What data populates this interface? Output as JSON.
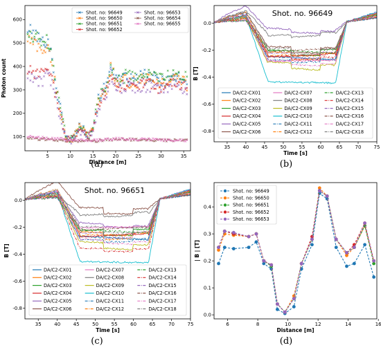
{
  "panel_labels": [
    "(a)",
    "(b)",
    "(c)",
    "(d)"
  ],
  "colors": {
    "C0": "#1f77b4",
    "C1": "#ff7f0e",
    "C2": "#2ca02c",
    "C3": "#d62728",
    "C4": "#9467bd",
    "C5": "#8c564b",
    "C6": "#e377c2",
    "C7": "#7f7f7f",
    "C8": "#bcbd22",
    "C9": "#17becf"
  },
  "chart_data": [
    {
      "type": "scatter",
      "panel": "(a)",
      "title": "",
      "xlabel": "Distance [m]",
      "ylabel": "Photon count",
      "xlim": [
        0,
        36.5
      ],
      "ylim": [
        40,
        660
      ],
      "xticks": [
        5,
        10,
        15,
        20,
        25,
        30,
        35
      ],
      "yticks": [
        100,
        200,
        300,
        400,
        500,
        600
      ],
      "legend": "top-right, 2 columns",
      "series": [
        {
          "name": "Shot. no: 96649",
          "color": "#1f77b4",
          "marker": "x",
          "style": "beam",
          "x": [
            0.5,
            2,
            4,
            5,
            6,
            7,
            8,
            9,
            10,
            11,
            12,
            13,
            14,
            15,
            16,
            17,
            18,
            19,
            20,
            21,
            22,
            24,
            26,
            28,
            30,
            32,
            34,
            36
          ],
          "y": [
            560,
            540,
            500,
            520,
            430,
            300,
            200,
            110,
            85,
            110,
            150,
            130,
            100,
            140,
            240,
            300,
            310,
            420,
            350,
            330,
            350,
            340,
            360,
            350,
            340,
            350,
            360,
            330
          ]
        },
        {
          "name": "Shot. no: 96650",
          "color": "#ff7f0e",
          "marker": "x",
          "style": "beam",
          "x": [
            0.5,
            2,
            4,
            5,
            6,
            7,
            8,
            9,
            10,
            11,
            12,
            13,
            14,
            15,
            16,
            17,
            18,
            19,
            20,
            21,
            22,
            24,
            26,
            28,
            30,
            32,
            34,
            36
          ],
          "y": [
            520,
            500,
            470,
            480,
            400,
            290,
            190,
            105,
            80,
            105,
            140,
            125,
            100,
            135,
            230,
            290,
            300,
            400,
            340,
            320,
            340,
            330,
            350,
            340,
            330,
            340,
            350,
            320
          ]
        },
        {
          "name": "Shot. no: 96651",
          "color": "#2ca02c",
          "marker": "x",
          "style": "beam",
          "x": [
            0.5,
            2,
            4,
            5,
            6,
            7,
            8,
            9,
            10,
            11,
            12,
            13,
            14,
            15,
            16,
            17,
            18,
            19,
            20,
            21,
            22,
            24,
            26,
            28,
            30,
            32,
            34,
            36
          ],
          "y": [
            550,
            530,
            500,
            510,
            420,
            300,
            200,
            110,
            85,
            110,
            150,
            130,
            105,
            140,
            240,
            300,
            310,
            410,
            350,
            330,
            360,
            350,
            370,
            360,
            350,
            360,
            370,
            340
          ]
        },
        {
          "name": "Shot. no: 96652",
          "color": "#d62728",
          "marker": "x",
          "style": "beam",
          "x": [
            0.5,
            2,
            4,
            5,
            6,
            7,
            8,
            9,
            10,
            11,
            12,
            13,
            14,
            15,
            16,
            17,
            18,
            19,
            20,
            21,
            22,
            24,
            26,
            28,
            30,
            32,
            34,
            36
          ],
          "y": [
            380,
            370,
            360,
            400,
            350,
            260,
            180,
            100,
            80,
            100,
            130,
            120,
            100,
            130,
            220,
            280,
            300,
            380,
            330,
            310,
            330,
            320,
            330,
            320,
            310,
            320,
            330,
            310
          ]
        },
        {
          "name": "Shot. no: 96653",
          "color": "#9467bd",
          "marker": "x",
          "style": "beam",
          "x": [
            0.5,
            2,
            4,
            5,
            6,
            7,
            8,
            9,
            10,
            11,
            12,
            13,
            14,
            15,
            16,
            17,
            18,
            19,
            20,
            21,
            22,
            24,
            26,
            28,
            30,
            32,
            34,
            36
          ],
          "y": [
            360,
            340,
            330,
            370,
            330,
            250,
            170,
            95,
            75,
            95,
            125,
            115,
            95,
            125,
            210,
            270,
            290,
            370,
            320,
            300,
            320,
            310,
            320,
            310,
            300,
            310,
            320,
            300
          ]
        },
        {
          "name": "Shot. no: 96654",
          "color": "#8c564b",
          "marker": "x",
          "style": "flat",
          "x": [
            0.5,
            4,
            8,
            12,
            16,
            20,
            24,
            28,
            32,
            36
          ],
          "y": [
            95,
            90,
            85,
            80,
            82,
            90,
            88,
            85,
            85,
            85
          ]
        },
        {
          "name": "Shot. no: 96655",
          "color": "#e377c2",
          "marker": "x",
          "style": "flat",
          "x": [
            0.5,
            4,
            8,
            12,
            16,
            20,
            24,
            28,
            32,
            36
          ],
          "y": [
            100,
            95,
            90,
            85,
            85,
            92,
            90,
            88,
            86,
            85
          ]
        }
      ]
    },
    {
      "type": "line",
      "panel": "(b)",
      "title": "Shot. no. 96649",
      "xlabel": "Time [s]",
      "ylabel": "B [T]",
      "xlim": [
        31.5,
        75
      ],
      "ylim": [
        -0.88,
        0.13
      ],
      "xticks": [
        35,
        40,
        45,
        50,
        55,
        60,
        65,
        70,
        75
      ],
      "yticks": [
        0.0,
        -0.2,
        -0.4,
        -0.6,
        -0.8
      ],
      "legend": "lower-center, 3 columns",
      "series": [
        {
          "name": "DA/C2-CX01",
          "color": "#1f77b4",
          "dash": "solid",
          "plateau": -0.26
        },
        {
          "name": "DA/C2-CX02",
          "color": "#ff7f0e",
          "dash": "solid",
          "plateau": -0.22
        },
        {
          "name": "DA/C2-CX03",
          "color": "#2ca02c",
          "dash": "solid",
          "plateau": -0.2
        },
        {
          "name": "DA/C2-CX04",
          "color": "#d62728",
          "dash": "solid",
          "plateau": -0.24
        },
        {
          "name": "DA/C2-CX05",
          "color": "#9467bd",
          "dash": "solid",
          "plateau": -0.05
        },
        {
          "name": "DA/C2-CX06",
          "color": "#8c564b",
          "dash": "solid",
          "plateau": -0.18
        },
        {
          "name": "DA/C2-CX07",
          "color": "#e377c2",
          "dash": "solid",
          "plateau": -0.28
        },
        {
          "name": "DA/C2-CX08",
          "color": "#7f7f7f",
          "dash": "solid",
          "plateau": -0.08
        },
        {
          "name": "DA/C2-CX09",
          "color": "#bcbd22",
          "dash": "solid",
          "plateau": -0.3
        },
        {
          "name": "DA/C2-CX10",
          "color": "#17becf",
          "dash": "solid",
          "plateau": -0.44
        },
        {
          "name": "DA/C2-CX11",
          "color": "#1f77b4",
          "dash": "dashdot",
          "plateau": -0.27
        },
        {
          "name": "DA/C2-CX12",
          "color": "#ff7f0e",
          "dash": "dashdot",
          "plateau": -0.23
        },
        {
          "name": "DA/C2-CX13",
          "color": "#2ca02c",
          "dash": "dashdot",
          "plateau": -0.21
        },
        {
          "name": "DA/C2-CX14",
          "color": "#d62728",
          "dash": "dashdot",
          "plateau": -0.25
        },
        {
          "name": "DA/C2-CX15",
          "color": "#9467bd",
          "dash": "dashdot",
          "plateau": -0.22
        },
        {
          "name": "DA/C2-CX16",
          "color": "#8c564b",
          "dash": "dashdot",
          "plateau": -0.2
        },
        {
          "name": "DA/C2-CX17",
          "color": "#e377c2",
          "dash": "dashdot",
          "plateau": -0.29
        },
        {
          "name": "DA/C2-CX18",
          "color": "#7f7f7f",
          "dash": "dashdot",
          "plateau": -0.19
        }
      ]
    },
    {
      "type": "line",
      "panel": "(c)",
      "title": "Shot. no. 96651",
      "xlabel": "Time [s]",
      "ylabel": "B [T]",
      "xlim": [
        31.5,
        75
      ],
      "ylim": [
        -0.88,
        0.13
      ],
      "xticks": [
        35,
        40,
        45,
        50,
        55,
        60,
        65,
        70,
        75
      ],
      "yticks": [
        0.0,
        -0.2,
        -0.4,
        -0.6,
        -0.8
      ],
      "legend": "lower-center, 3 columns",
      "series": [
        {
          "name": "DA/C2-CX01",
          "color": "#1f77b4",
          "dash": "solid",
          "plateau": -0.28
        },
        {
          "name": "DA/C2-CX02",
          "color": "#ff7f0e",
          "dash": "solid",
          "plateau": -0.24
        },
        {
          "name": "DA/C2-CX03",
          "color": "#2ca02c",
          "dash": "solid",
          "plateau": -0.22
        },
        {
          "name": "DA/C2-CX04",
          "color": "#d62728",
          "dash": "solid",
          "plateau": -0.26
        },
        {
          "name": "DA/C2-CX05",
          "color": "#9467bd",
          "dash": "solid",
          "plateau": -0.18
        },
        {
          "name": "DA/C2-CX06",
          "color": "#8c564b",
          "dash": "solid",
          "plateau": -0.06
        },
        {
          "name": "DA/C2-CX07",
          "color": "#e377c2",
          "dash": "solid",
          "plateau": -0.2
        },
        {
          "name": "DA/C2-CX08",
          "color": "#7f7f7f",
          "dash": "solid",
          "plateau": -0.1
        },
        {
          "name": "DA/C2-CX09",
          "color": "#bcbd22",
          "dash": "solid",
          "plateau": -0.32
        },
        {
          "name": "DA/C2-CX10",
          "color": "#17becf",
          "dash": "solid",
          "plateau": -0.46
        },
        {
          "name": "DA/C2-CX11",
          "color": "#1f77b4",
          "dash": "dashdot",
          "plateau": -0.29
        },
        {
          "name": "DA/C2-CX12",
          "color": "#ff7f0e",
          "dash": "dashdot",
          "plateau": -0.25
        },
        {
          "name": "DA/C2-CX13",
          "color": "#2ca02c",
          "dash": "dashdot",
          "plateau": -0.23
        },
        {
          "name": "DA/C2-CX14",
          "color": "#d62728",
          "dash": "dashdot",
          "plateau": -0.36
        },
        {
          "name": "DA/C2-CX15",
          "color": "#9467bd",
          "dash": "dashdot",
          "plateau": -0.24
        },
        {
          "name": "DA/C2-CX16",
          "color": "#8c564b",
          "dash": "dashdot",
          "plateau": -0.21
        },
        {
          "name": "DA/C2-CX17",
          "color": "#e377c2",
          "dash": "dashdot",
          "plateau": -0.3
        },
        {
          "name": "DA/C2-CX18",
          "color": "#7f7f7f",
          "dash": "dashdot",
          "plateau": -0.2
        }
      ]
    },
    {
      "type": "line",
      "panel": "(d)",
      "title": "",
      "xlabel": "Distance [m]",
      "ylabel": "| B | [T]",
      "xlim": [
        5.1,
        15.9
      ],
      "ylim": [
        -0.015,
        0.49
      ],
      "xticks": [
        6,
        8,
        10,
        12,
        14,
        16
      ],
      "yticks": [
        0.0,
        0.1,
        0.2,
        0.3,
        0.4
      ],
      "legend": "top-left",
      "x": [
        5.4,
        5.8,
        6.4,
        7.4,
        7.9,
        8.4,
        8.9,
        9.3,
        9.8,
        10.4,
        10.9,
        11.6,
        12.1,
        12.6,
        13.2,
        13.9,
        14.4,
        15.1,
        15.7
      ],
      "series": [
        {
          "name": "Shot. no: 96649",
          "color": "#1f77b4",
          "dash": "dash",
          "values": [
            0.19,
            0.25,
            0.245,
            0.25,
            0.27,
            0.19,
            0.17,
            0.02,
            0.005,
            0.03,
            0.17,
            0.26,
            0.45,
            0.43,
            0.25,
            0.18,
            0.19,
            0.26,
            0.14
          ]
        },
        {
          "name": "Shot. no: 96650",
          "color": "#ff7f0e",
          "dash": "dash",
          "values": [
            0.24,
            0.3,
            0.295,
            0.29,
            0.3,
            0.2,
            0.185,
            0.04,
            0.01,
            0.07,
            0.19,
            0.28,
            0.47,
            0.44,
            0.28,
            0.22,
            0.25,
            0.33,
            0.2
          ]
        },
        {
          "name": "Shot. no: 96651",
          "color": "#2ca02c",
          "dash": "dash",
          "values": [
            0.25,
            0.31,
            0.3,
            0.29,
            0.3,
            0.2,
            0.18,
            0.04,
            0.01,
            0.06,
            0.19,
            0.28,
            0.46,
            0.44,
            0.28,
            0.23,
            0.25,
            0.33,
            0.19
          ]
        },
        {
          "name": "Shot. no: 96652",
          "color": "#d62728",
          "dash": "dash",
          "values": [
            0.25,
            0.31,
            0.3,
            0.29,
            0.3,
            0.2,
            0.185,
            0.04,
            0.01,
            0.06,
            0.19,
            0.29,
            0.46,
            0.44,
            0.28,
            0.23,
            0.26,
            0.34,
            0.2
          ]
        },
        {
          "name": "Shot. no: 96653",
          "color": "#9467bd",
          "dash": "dash",
          "values": [
            0.25,
            0.31,
            0.305,
            0.29,
            0.3,
            0.2,
            0.185,
            0.04,
            0.01,
            0.06,
            0.19,
            0.28,
            0.46,
            0.44,
            0.28,
            0.23,
            0.25,
            0.34,
            0.2
          ]
        }
      ]
    }
  ]
}
